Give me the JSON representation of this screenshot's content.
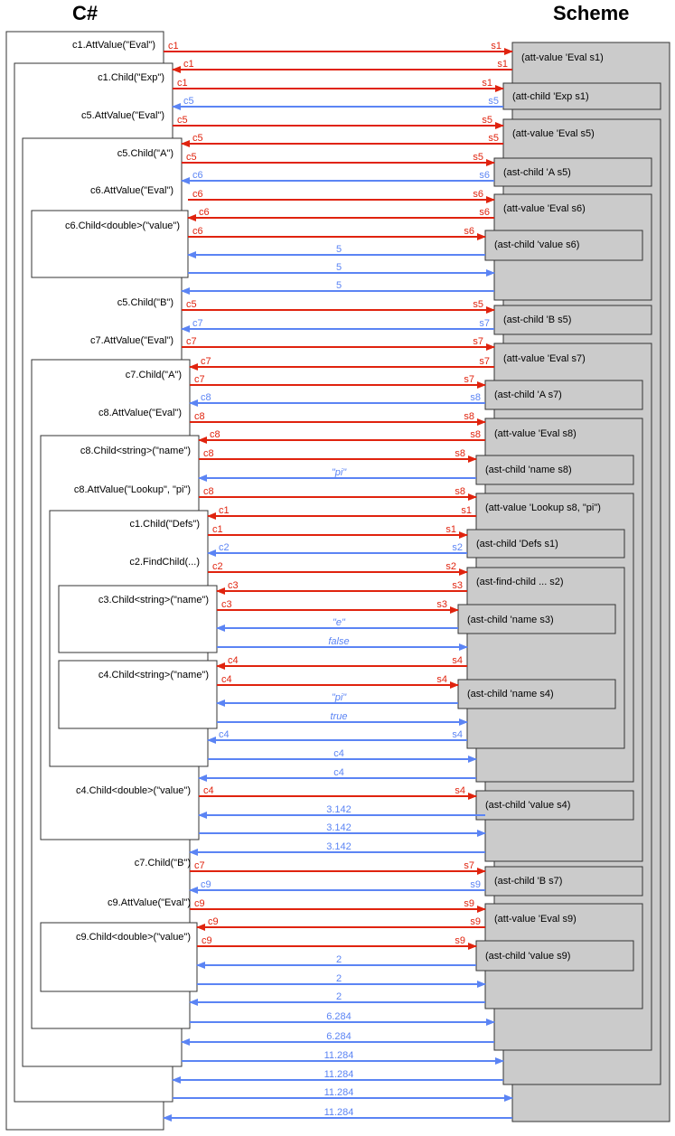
{
  "headers": {
    "left": "C#",
    "right": "Scheme"
  },
  "colors": {
    "red": "#e0230e",
    "blue": "#5b84f4",
    "box_fill": "#cbcbcb",
    "box_stroke": "#333333"
  },
  "csharp_calls": [
    "c1.AttValue(\"Eval\")",
    "c1.Child(\"Exp\")",
    "c5.AttValue(\"Eval\")",
    "c5.Child(\"A\")",
    "c6.AttValue(\"Eval\")",
    "c6.Child<double>(\"value\")",
    "c5.Child(\"B\")",
    "c7.AttValue(\"Eval\")",
    "c7.Child(\"A\")",
    "c8.AttValue(\"Eval\")",
    "c8.Child<string>(\"name\")",
    "c8.AttValue(\"Lookup\", \"pi\")",
    "c1.Child(\"Defs\")",
    "c2.FindChild(...)",
    "c3.Child<string>(\"name\")",
    "c4.Child<string>(\"name\")",
    "c4.Child<double>(\"value\")",
    "c7.Child(\"B\")",
    "c9.AttValue(\"Eval\")",
    "c9.Child<double>(\"value\")"
  ],
  "scheme_calls": [
    "(att-value 'Eval s1)",
    "(att-child 'Exp s1)",
    "(att-value 'Eval s5)",
    "(ast-child 'A s5)",
    "(att-value 'Eval s6)",
    "(ast-child 'value s6)",
    "(ast-child 'B s5)",
    "(att-value 'Eval s7)",
    "(ast-child 'A s7)",
    "(att-value 'Eval s8)",
    "(ast-child 'name s8)",
    "(att-value 'Lookup s8, \"pi\")",
    "(ast-child 'Defs s1)",
    "(ast-find-child ... s2)",
    "(ast-child 'name s3)",
    "(ast-child 'name s4)",
    "(ast-child 'value s4)",
    "(ast-child 'B s7)",
    "(att-value 'Eval s9)",
    "(ast-child 'value s9)"
  ],
  "messages": [
    {
      "dir": "right",
      "color": "red",
      "left": "c1",
      "right": "s1"
    },
    {
      "dir": "left",
      "color": "red",
      "left": "c1",
      "right": "s1"
    },
    {
      "dir": "right",
      "color": "red",
      "left": "c1",
      "right": "s1"
    },
    {
      "dir": "left",
      "color": "blue",
      "left": "c5",
      "right": "s5"
    },
    {
      "dir": "right",
      "color": "red",
      "left": "c5",
      "right": "s5"
    },
    {
      "dir": "left",
      "color": "red",
      "left": "c5",
      "right": "s5"
    },
    {
      "dir": "right",
      "color": "red",
      "left": "c5",
      "right": "s5"
    },
    {
      "dir": "left",
      "color": "blue",
      "left": "c6",
      "right": "s6"
    },
    {
      "dir": "right",
      "color": "red",
      "left": "c6",
      "right": "s6"
    },
    {
      "dir": "left",
      "color": "red",
      "left": "c6",
      "right": "s6"
    },
    {
      "dir": "right",
      "color": "red",
      "left": "c6",
      "right": "s6"
    },
    {
      "dir": "left",
      "color": "blue",
      "center": "5"
    },
    {
      "dir": "right",
      "color": "blue",
      "center": "5"
    },
    {
      "dir": "left",
      "color": "blue",
      "center": "5"
    },
    {
      "dir": "right",
      "color": "red",
      "left": "c5",
      "right": "s5"
    },
    {
      "dir": "left",
      "color": "blue",
      "left": "c7",
      "right": "s7"
    },
    {
      "dir": "right",
      "color": "red",
      "left": "c7",
      "right": "s7"
    },
    {
      "dir": "left",
      "color": "red",
      "left": "c7",
      "right": "s7"
    },
    {
      "dir": "right",
      "color": "red",
      "left": "c7",
      "right": "s7"
    },
    {
      "dir": "left",
      "color": "blue",
      "left": "c8",
      "right": "s8"
    },
    {
      "dir": "right",
      "color": "red",
      "left": "c8",
      "right": "s8"
    },
    {
      "dir": "left",
      "color": "red",
      "left": "c8",
      "right": "s8"
    },
    {
      "dir": "right",
      "color": "red",
      "left": "c8",
      "right": "s8"
    },
    {
      "dir": "left",
      "color": "blue",
      "center": "\"pi\"",
      "italic": true
    },
    {
      "dir": "right",
      "color": "red",
      "left": "c8",
      "right": "s8"
    },
    {
      "dir": "left",
      "color": "red",
      "left": "c1",
      "right": "s1"
    },
    {
      "dir": "right",
      "color": "red",
      "left": "c1",
      "right": "s1"
    },
    {
      "dir": "left",
      "color": "blue",
      "left": "c2",
      "right": "s2"
    },
    {
      "dir": "right",
      "color": "red",
      "left": "c2",
      "right": "s2"
    },
    {
      "dir": "left",
      "color": "red",
      "left": "c3",
      "right": "s3"
    },
    {
      "dir": "right",
      "color": "red",
      "left": "c3",
      "right": "s3"
    },
    {
      "dir": "left",
      "color": "blue",
      "center": "\"e\"",
      "italic": true
    },
    {
      "dir": "right",
      "color": "blue",
      "center": "false",
      "italic": true
    },
    {
      "dir": "left",
      "color": "red",
      "left": "c4",
      "right": "s4"
    },
    {
      "dir": "right",
      "color": "red",
      "left": "c4",
      "right": "s4"
    },
    {
      "dir": "left",
      "color": "blue",
      "center": "\"pi\"",
      "italic": true
    },
    {
      "dir": "right",
      "color": "blue",
      "center": "true",
      "italic": true
    },
    {
      "dir": "left",
      "color": "blue",
      "left": "c4",
      "right": "s4"
    },
    {
      "dir": "right",
      "color": "blue",
      "center": "c4"
    },
    {
      "dir": "left",
      "color": "blue",
      "center": "c4"
    },
    {
      "dir": "right",
      "color": "red",
      "left": "c4",
      "right": "s4"
    },
    {
      "dir": "left",
      "color": "blue",
      "center": "3.142"
    },
    {
      "dir": "right",
      "color": "blue",
      "center": "3.142"
    },
    {
      "dir": "left",
      "color": "blue",
      "center": "3.142"
    },
    {
      "dir": "right",
      "color": "red",
      "left": "c7",
      "right": "s7"
    },
    {
      "dir": "left",
      "color": "blue",
      "left": "c9",
      "right": "s9"
    },
    {
      "dir": "right",
      "color": "red",
      "left": "c9",
      "right": "s9"
    },
    {
      "dir": "left",
      "color": "red",
      "left": "c9",
      "right": "s9"
    },
    {
      "dir": "right",
      "color": "red",
      "left": "c9",
      "right": "s9"
    },
    {
      "dir": "left",
      "color": "blue",
      "center": "2"
    },
    {
      "dir": "right",
      "color": "blue",
      "center": "2"
    },
    {
      "dir": "left",
      "color": "blue",
      "center": "2"
    },
    {
      "dir": "right",
      "color": "blue",
      "center": "6.284"
    },
    {
      "dir": "left",
      "color": "blue",
      "center": "6.284"
    },
    {
      "dir": "right",
      "color": "blue",
      "center": "11.284"
    },
    {
      "dir": "left",
      "color": "blue",
      "center": "11.284"
    },
    {
      "dir": "right",
      "color": "blue",
      "center": "11.284"
    },
    {
      "dir": "left",
      "color": "blue",
      "center": "11.284"
    }
  ]
}
